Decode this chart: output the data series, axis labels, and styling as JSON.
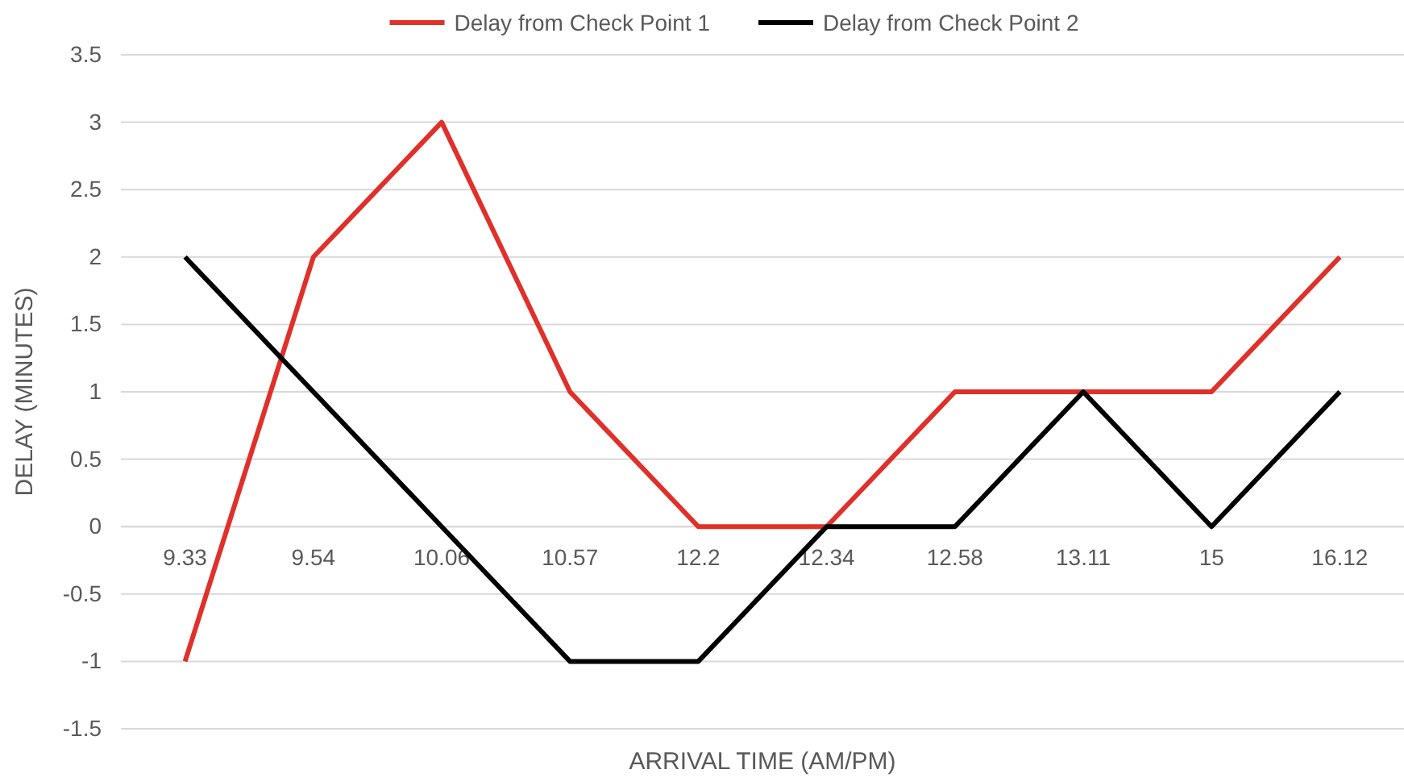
{
  "chart_data": {
    "type": "line",
    "xlabel": "ARRIVAL TIME (AM/PM)",
    "ylabel": "DELAY (MINUTES)",
    "categories": [
      "9.33",
      "9.54",
      "10.06",
      "10.57",
      "12.2",
      "12.34",
      "12.58",
      "13.11",
      "15",
      "16.12"
    ],
    "series": [
      {
        "name": "Delay from Check Point 1",
        "color": "#e0302a",
        "values": [
          -1,
          2,
          3,
          1,
          0,
          0,
          1,
          1,
          1,
          2
        ]
      },
      {
        "name": "Delay from Check Point 2",
        "color": "#000000",
        "values": [
          2,
          1,
          0,
          -1,
          -1,
          0,
          0,
          1,
          0,
          1
        ]
      }
    ],
    "ylim": [
      -1.5,
      3.5
    ],
    "yticks": [
      -1.5,
      -1,
      -0.5,
      0,
      0.5,
      1,
      1.5,
      2,
      2.5,
      3,
      3.5
    ],
    "grid": "y",
    "legend": "top",
    "marker": "none",
    "line_style": "solid"
  }
}
